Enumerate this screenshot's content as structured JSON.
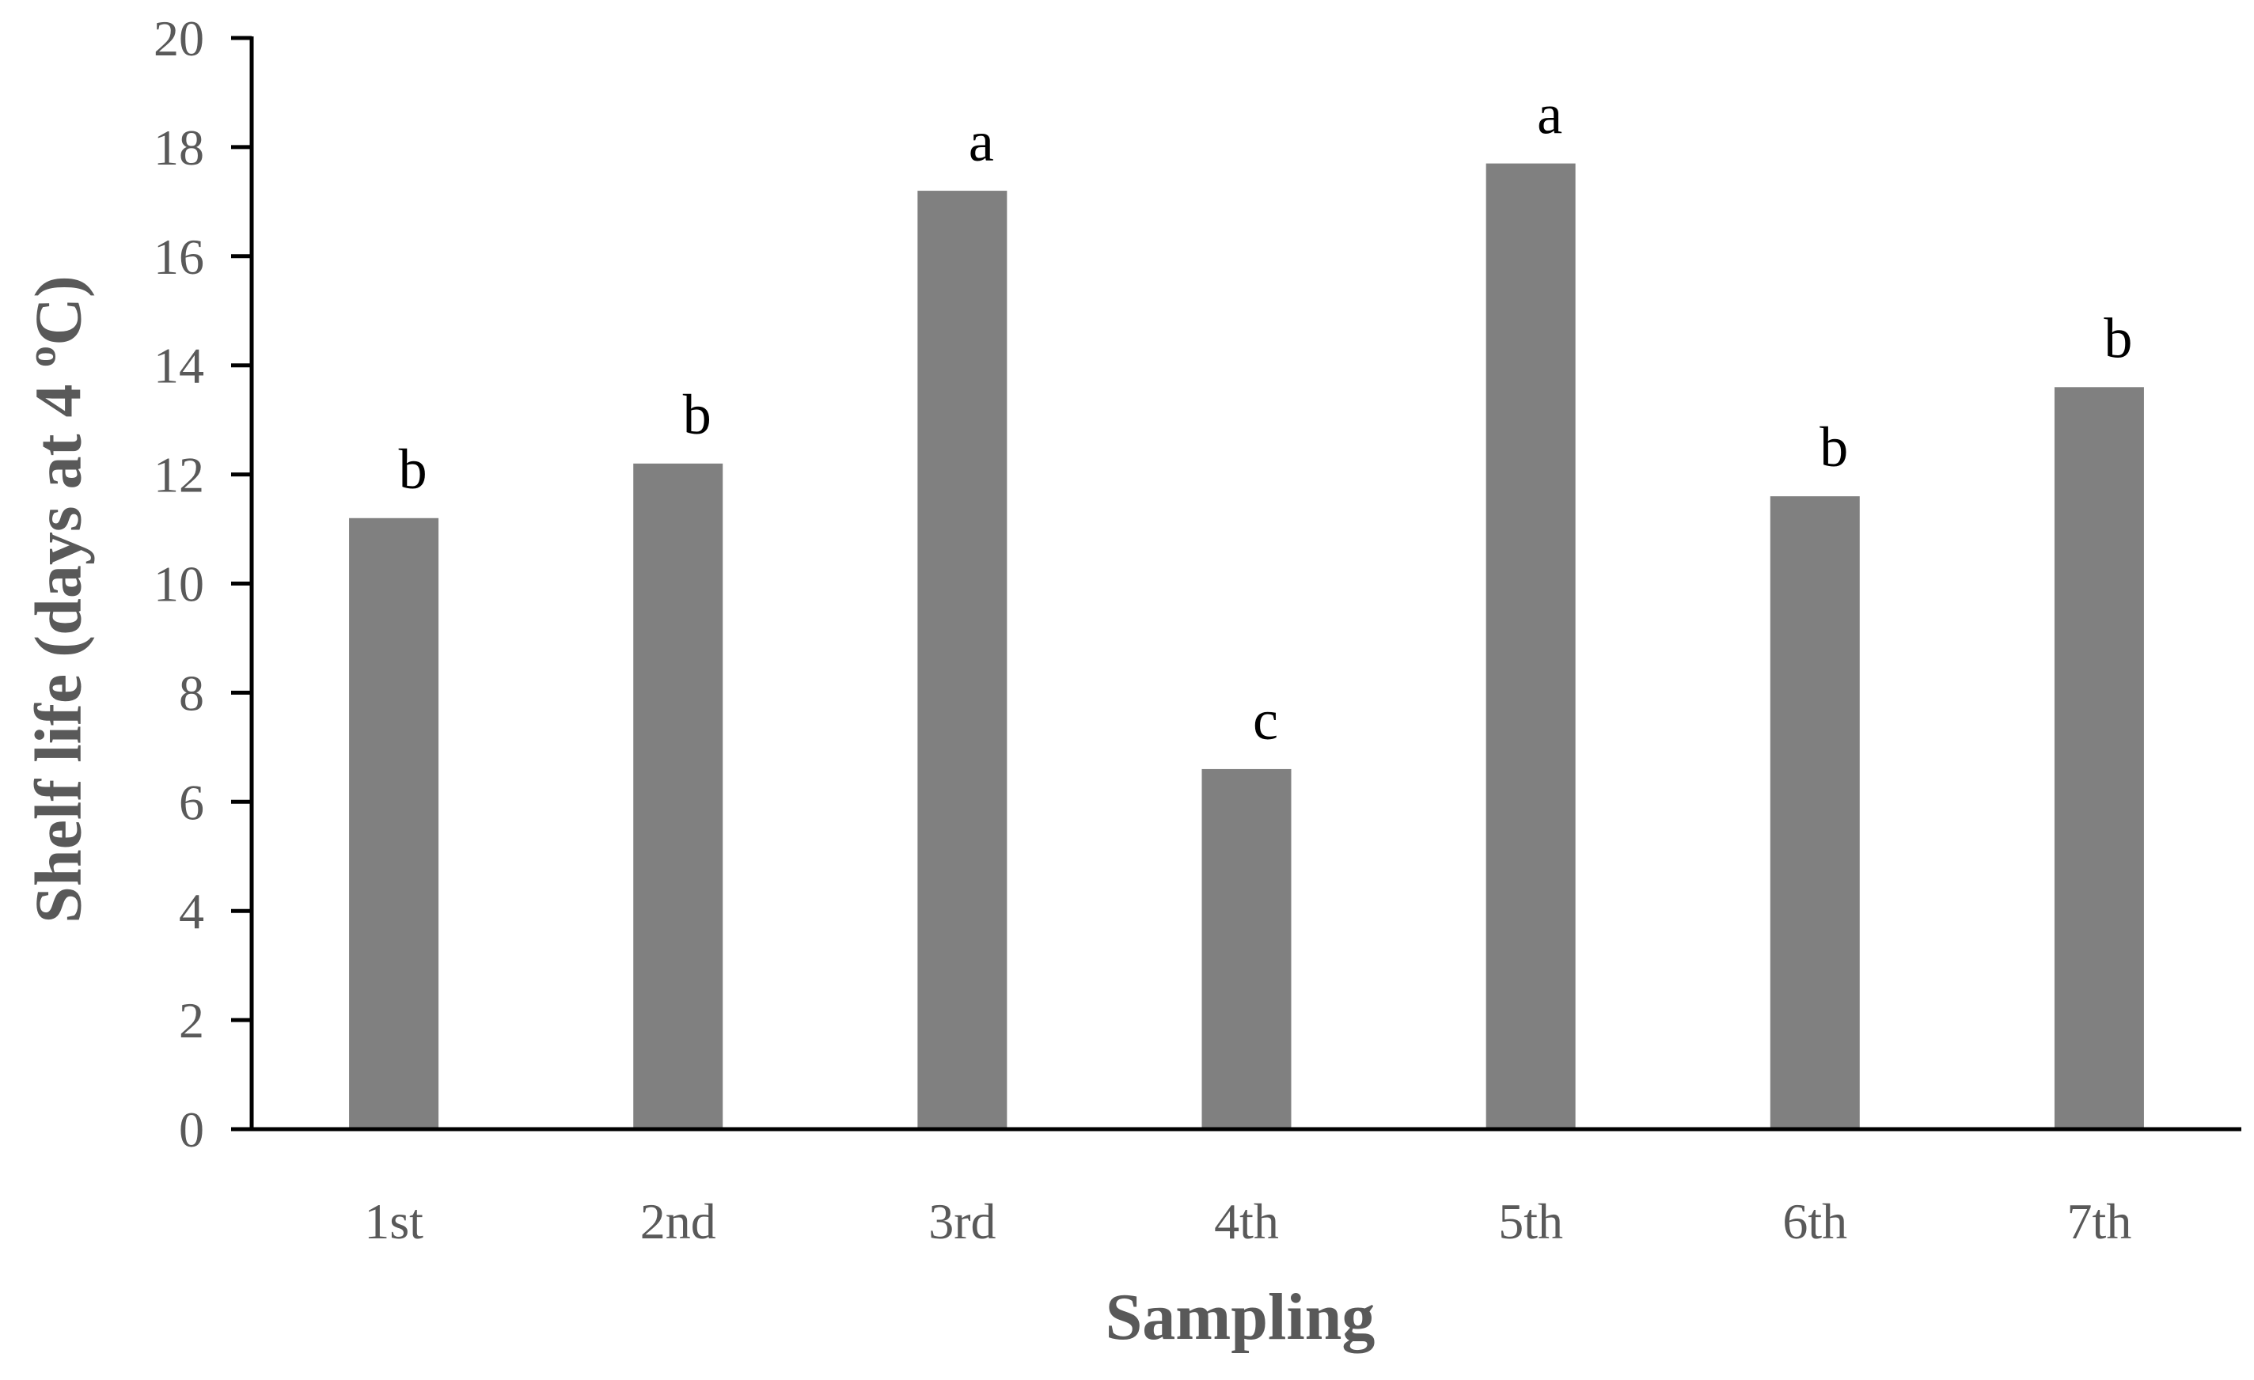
{
  "chart_data": {
    "type": "bar",
    "title": "",
    "xlabel": "Sampling",
    "ylabel": "Shelf life (days at 4 ºC)",
    "categories": [
      "1st",
      "2nd",
      "3rd",
      "4th",
      "5th",
      "6th",
      "7th"
    ],
    "values": [
      11.2,
      12.2,
      17.2,
      6.6,
      17.7,
      11.6,
      13.6
    ],
    "significance_letters": [
      "b",
      "b",
      "a",
      "c",
      "a",
      "b",
      "b"
    ],
    "ylim": [
      0,
      20
    ],
    "yticks": [
      0,
      2,
      4,
      6,
      8,
      10,
      12,
      14,
      16,
      18,
      20
    ],
    "grid": false,
    "legend": "none",
    "bar_color": "#808080",
    "axis_color": "#000000",
    "tick_label_color": "#595959"
  }
}
